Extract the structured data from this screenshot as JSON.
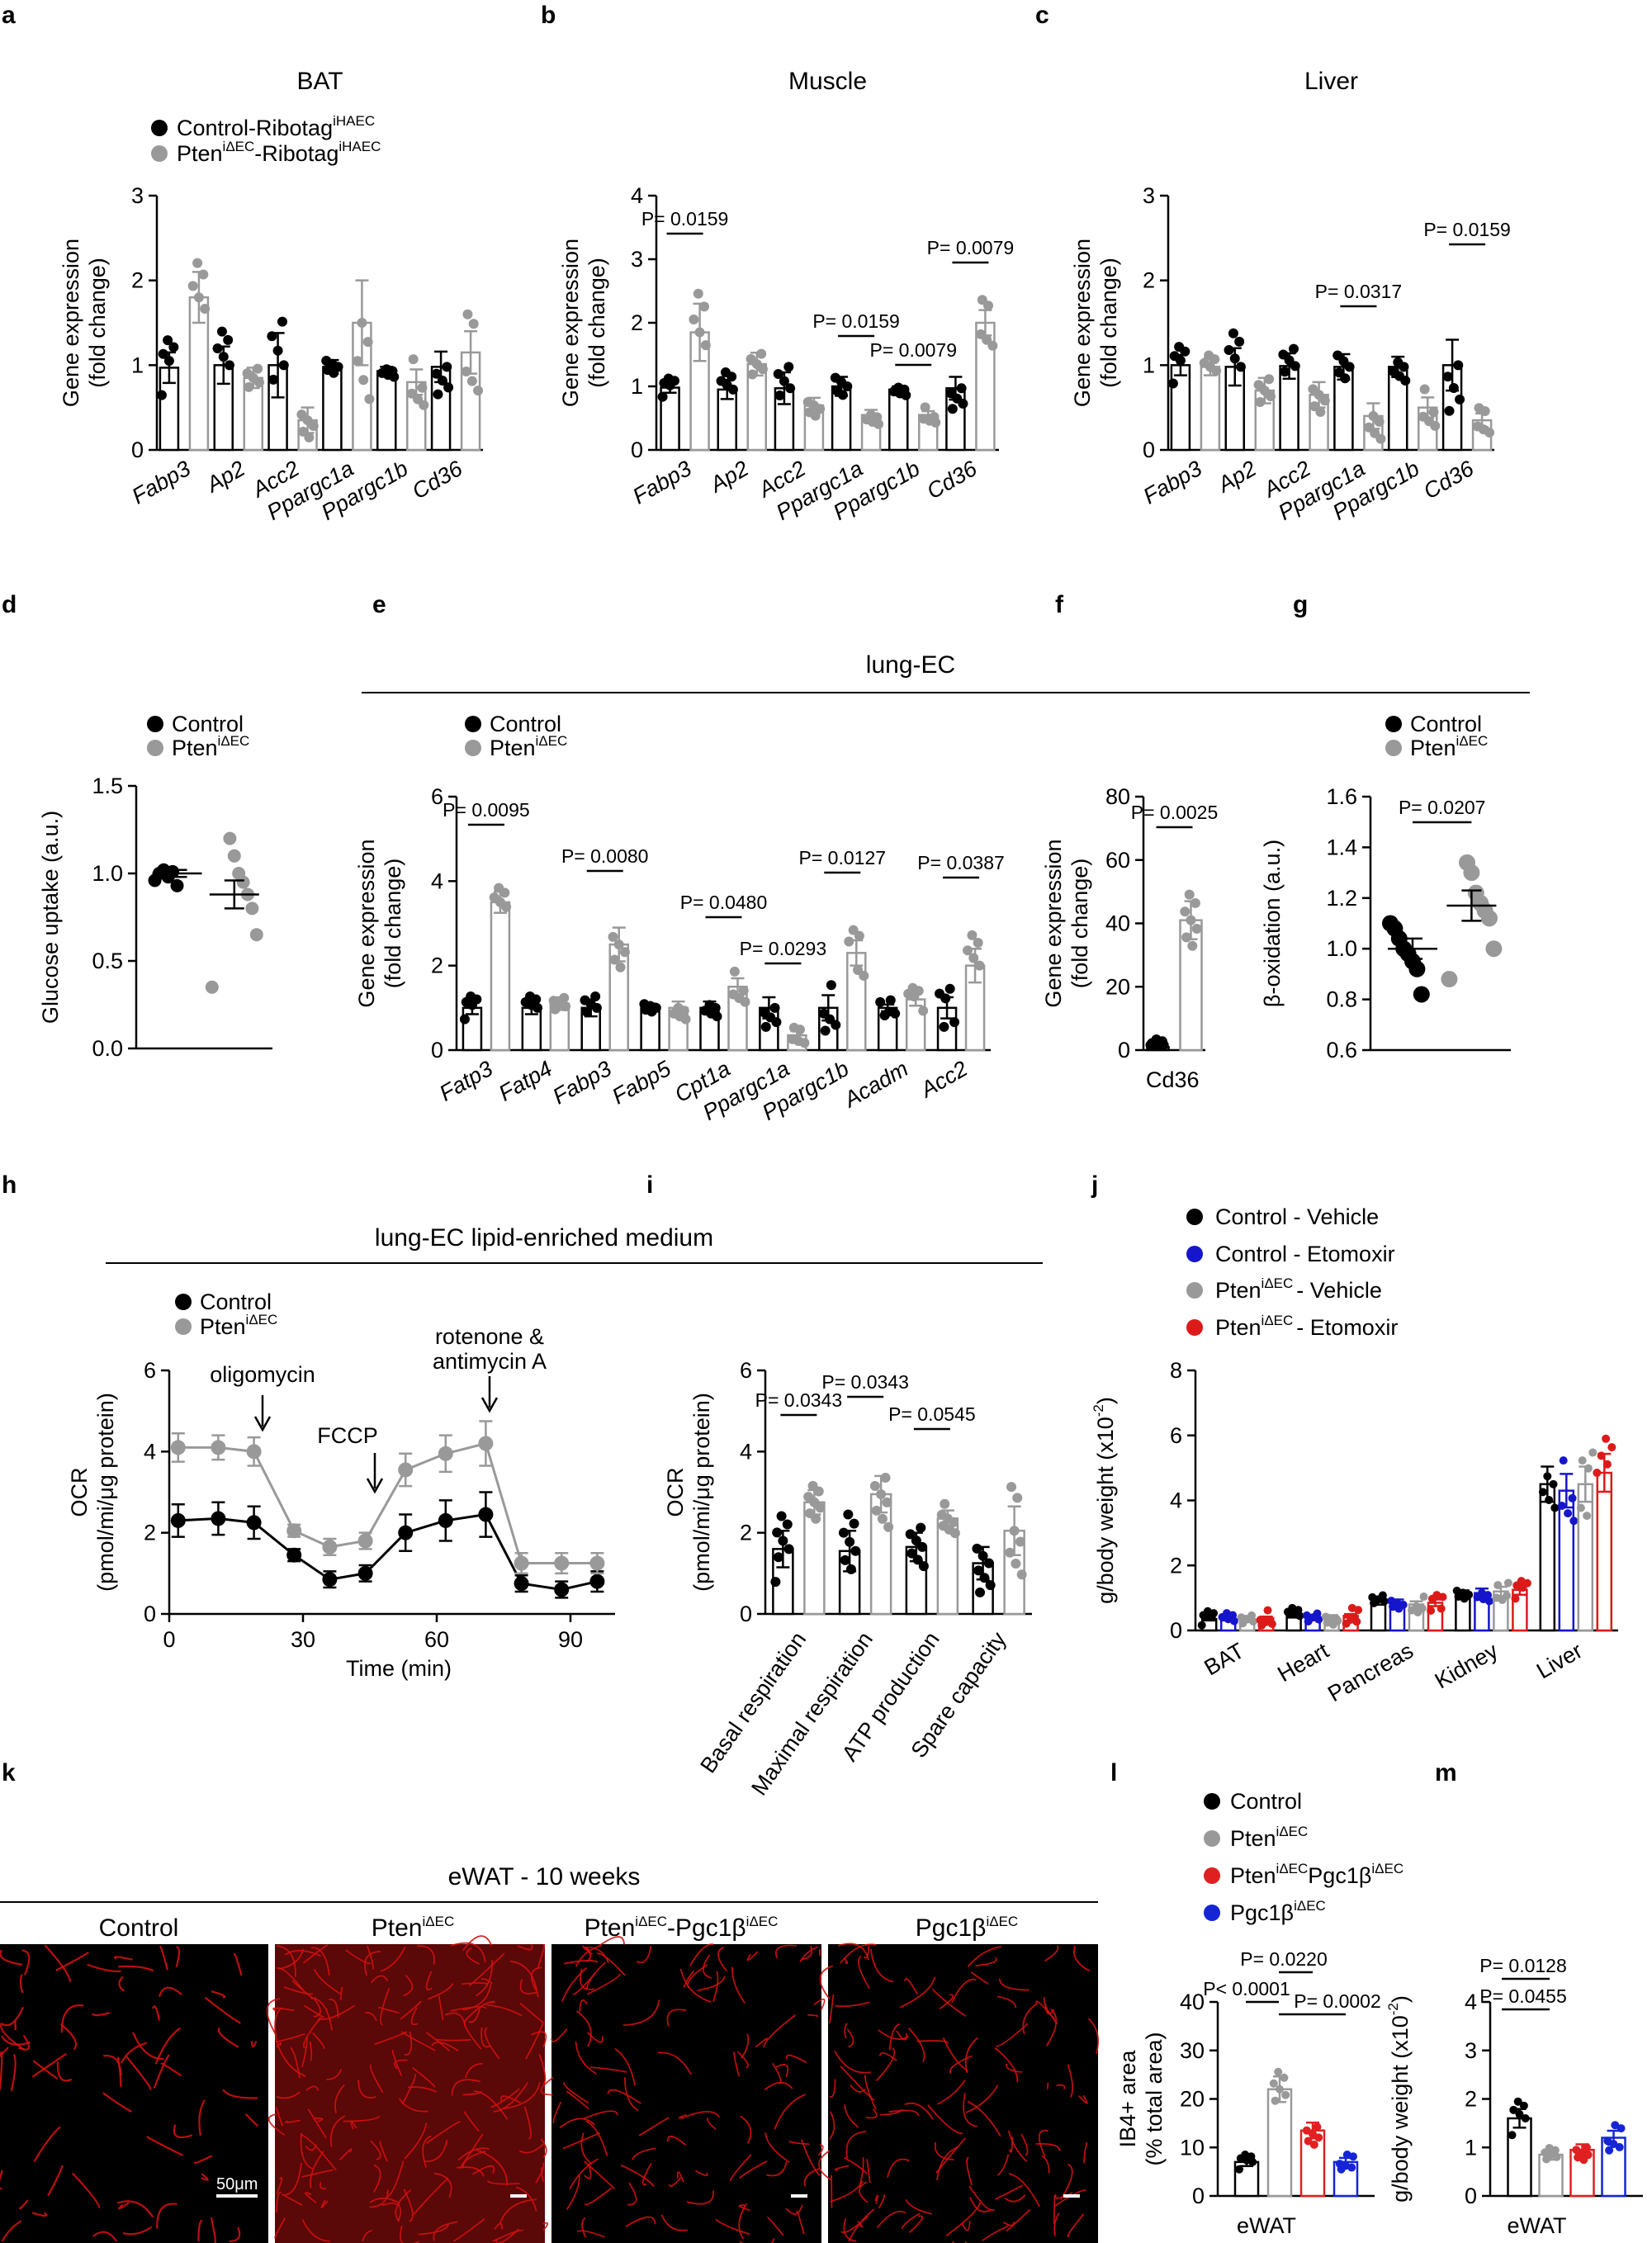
{
  "panel_letters": {
    "a": "a",
    "b": "b",
    "c": "c",
    "d": "d",
    "e": "e",
    "f": "f",
    "g": "g",
    "h": "h",
    "i": "i",
    "j": "j",
    "k": "k",
    "l": "l",
    "m": "m"
  },
  "colors": {
    "control": "#000000",
    "pten": "#999999",
    "etomoxir_control": "#1515cc",
    "etomoxir_pten": "#dd1a1a",
    "pgc": "#e02020",
    "pgc_only": "#1525d6",
    "vessel": "#d01010"
  },
  "legends": {
    "ribotag": {
      "control": "Control-Ribotag",
      "control_sup": "iHAEC",
      "pten": "Pten",
      "pten_sup1": "iΔEC",
      "pten_rest": "-Ribotag",
      "pten_sup2": "iHAEC"
    },
    "basic": {
      "control": "Control",
      "pten": "Pten",
      "pten_sup": "iΔEC"
    },
    "j": {
      "l1": "Control - Vehicle",
      "l2": "Control - Etomoxir",
      "l3_main": "Pten",
      "l3_sup": "iΔEC",
      "l3_rest": "- Vehicle",
      "l4_main": "Pten",
      "l4_sup": "iΔEC",
      "l4_rest": "- Etomoxir"
    },
    "l": {
      "l1": "Control",
      "l2_main": "Pten",
      "l2_sup": "iΔEC",
      "l3_a": "Pten",
      "l3_b": "iΔEC",
      "l3_c": "Pgc1β",
      "l3_d": "iΔEC",
      "l4_a": "Pgc1β",
      "l4_b": "iΔEC"
    }
  },
  "section_titles": {
    "e": "lung-EC",
    "h": "lung-EC lipid-enriched medium",
    "k": "eWAT - 10 weeks"
  },
  "h_annotations": {
    "oligomycin": "oligomycin",
    "fccp": "FCCP",
    "rotenone": "rotenone &",
    "antimycin": "antimycin A"
  },
  "k_images": {
    "c1": "Control",
    "c2_main": "Pten",
    "c2_sup": "iΔEC",
    "c3_a": "Pten",
    "c3_b": "iΔEC",
    "c3_c": "-Pgc1β",
    "c3_d": "iΔEC",
    "c4_a": "Pgc1β",
    "c4_b": "iΔEC",
    "scale": "50μm"
  },
  "chart_data": [
    {
      "id": "a",
      "type": "bar",
      "title": "BAT",
      "ylabel": "Gene expression",
      "ylabel2": "(fold change)",
      "ylim": [
        0,
        3
      ],
      "yticks": [
        "0",
        "1",
        "2",
        "3"
      ],
      "categories": [
        "Fabp3",
        "Ap2",
        "Acc2",
        "Ppargc1a",
        "Ppargc1b",
        "Cd36"
      ],
      "series": [
        {
          "name": "Control-Ribotag iHAEC",
          "values": [
            0.97,
            1.0,
            1.0,
            0.98,
            0.93,
            0.98
          ],
          "sem": [
            0.18,
            0.22,
            0.38,
            0.08,
            0.05,
            0.18
          ]
        },
        {
          "name": "Pten iΔEC-Ribotag iHAEC",
          "values": [
            1.8,
            0.85,
            0.35,
            1.5,
            0.8,
            1.15
          ],
          "sem": [
            0.3,
            0.12,
            0.15,
            0.5,
            0.15,
            0.25
          ]
        }
      ],
      "pvalues": []
    },
    {
      "id": "b",
      "type": "bar",
      "title": "Muscle",
      "ylabel": "Gene expression",
      "ylabel2": "(fold change)",
      "ylim": [
        0,
        4
      ],
      "yticks": [
        "0",
        "1",
        "2",
        "3",
        "4"
      ],
      "categories": [
        "Fabp3",
        "Ap2",
        "Acc2",
        "Ppargc1a",
        "Ppargc1b",
        "Cd36"
      ],
      "series": [
        {
          "name": "Control",
          "values": [
            0.98,
            0.95,
            0.97,
            1.0,
            0.95,
            0.97
          ],
          "sem": [
            0.08,
            0.15,
            0.25,
            0.15,
            0.05,
            0.18
          ]
        },
        {
          "name": "Pten",
          "values": [
            1.85,
            1.35,
            0.7,
            0.55,
            0.55,
            2.0
          ],
          "sem": [
            0.45,
            0.18,
            0.12,
            0.08,
            0.06,
            0.2
          ]
        }
      ],
      "pvalues": [
        {
          "text": "P= 0.0159",
          "cat": 0
        },
        {
          "text": "P= 0.0159",
          "cat": 3
        },
        {
          "text": "P= 0.0079",
          "cat": 4
        },
        {
          "text": "P= 0.0079",
          "cat": 5
        }
      ]
    },
    {
      "id": "c",
      "type": "bar",
      "title": "Liver",
      "ylabel": "Gene expression",
      "ylabel2": "(fold change)",
      "ylim": [
        0,
        3
      ],
      "yticks": [
        "0",
        "1",
        "2",
        "3"
      ],
      "categories": [
        "Fabp3",
        "Ap2",
        "Acc2",
        "Ppargc1a",
        "Ppargc1b",
        "Cd36"
      ],
      "series": [
        {
          "name": "Control",
          "values": [
            1.0,
            0.98,
            0.99,
            0.98,
            0.98,
            1.0
          ],
          "sem": [
            0.12,
            0.22,
            0.15,
            0.15,
            0.12,
            0.3
          ]
        },
        {
          "name": "Pten",
          "values": [
            0.98,
            0.7,
            0.65,
            0.4,
            0.5,
            0.35
          ],
          "sem": [
            0.1,
            0.15,
            0.15,
            0.15,
            0.12,
            0.08
          ]
        }
      ],
      "pvalues": [
        {
          "text": "P= 0.0317",
          "cat": 3
        },
        {
          "text": "P= 0.0159",
          "cat": 5
        }
      ]
    },
    {
      "id": "d",
      "type": "scatter",
      "ylabel": "Glucose uptake (a.u.)",
      "ylim": [
        0,
        1.5
      ],
      "yticks": [
        "0.0",
        "0.5",
        "1.0",
        "1.5"
      ],
      "groups": [
        {
          "name": "Control",
          "mean": 1.0,
          "sem": 0.02,
          "points": [
            0.96,
            1.0,
            1.02,
            0.98,
            1.01,
            0.93
          ]
        },
        {
          "name": "Pten iΔEC",
          "mean": 0.88,
          "sem": 0.08,
          "points": [
            1.2,
            1.1,
            1.0,
            0.95,
            0.88,
            0.8,
            0.65,
            0.35
          ]
        }
      ]
    },
    {
      "id": "e",
      "type": "bar",
      "ylabel": "Gene expression",
      "ylabel2": "(fold change)",
      "ylim": [
        0,
        6
      ],
      "yticks": [
        "0",
        "2",
        "4",
        "6"
      ],
      "categories": [
        "Fatp3",
        "Fatp4",
        "Fabp3",
        "Fabp5",
        "Cpt1a",
        "Ppargc1a",
        "Ppargc1b",
        "Acadm",
        "Acc2"
      ],
      "series": [
        {
          "name": "Control",
          "values": [
            1.0,
            1.0,
            1.0,
            1.0,
            1.0,
            1.0,
            1.0,
            1.0,
            1.0
          ],
          "sem": [
            0.15,
            0.15,
            0.2,
            0.1,
            0.15,
            0.25,
            0.3,
            0.08,
            0.25
          ]
        },
        {
          "name": "Pten",
          "values": [
            3.5,
            1.1,
            2.5,
            1.0,
            1.5,
            0.35,
            2.3,
            1.2,
            2.0
          ],
          "sem": [
            0.25,
            0.15,
            0.4,
            0.15,
            0.2,
            0.1,
            0.3,
            0.15,
            0.4
          ]
        }
      ],
      "pvalues": [
        {
          "text": "P= 0.0095",
          "cat": 0
        },
        {
          "text": "P= 0.0080",
          "cat": 2
        },
        {
          "text": "P= 0.0480",
          "cat": 4
        },
        {
          "text": "P= 0.0293",
          "cat": 5
        },
        {
          "text": "P= 0.0127",
          "cat": 6
        },
        {
          "text": "P= 0.0387",
          "cat": 8
        }
      ]
    },
    {
      "id": "f",
      "type": "bar",
      "ylabel": "Gene expression",
      "ylabel2": "(fold change)",
      "ylim": [
        0,
        80
      ],
      "yticks": [
        "0",
        "20",
        "40",
        "60",
        "80"
      ],
      "categories": [
        "Cd36"
      ],
      "series": [
        {
          "name": "Control",
          "values": [
            1.0
          ],
          "sem": [
            0.3
          ]
        },
        {
          "name": "Pten",
          "values": [
            41
          ],
          "sem": [
            6
          ]
        }
      ],
      "pvalues": [
        {
          "text": "P= 0.0025",
          "cat": 0
        }
      ]
    },
    {
      "id": "g",
      "type": "scatter",
      "ylabel": "β-oxidation (a.u.)",
      "ylim": [
        0.6,
        1.6
      ],
      "yticks": [
        "0.6",
        "0.8",
        "1.0",
        "1.2",
        "1.4",
        "1.6"
      ],
      "groups": [
        {
          "name": "Control",
          "mean": 1.0,
          "sem": 0.04,
          "points": [
            1.1,
            1.08,
            1.04,
            1.0,
            0.98,
            0.95,
            0.92,
            0.82
          ]
        },
        {
          "name": "Pten iΔEC",
          "mean": 1.17,
          "sem": 0.06,
          "points": [
            1.34,
            1.3,
            1.22,
            1.18,
            1.15,
            1.12,
            1.0,
            0.88
          ]
        }
      ],
      "pvalue": "P= 0.0207"
    },
    {
      "id": "h",
      "type": "line",
      "xlabel": "Time (min)",
      "ylabel": "OCR",
      "ylabel2": "(pmol/mi/μg protein)",
      "xlim": [
        0,
        100
      ],
      "ylim": [
        0,
        6
      ],
      "xticks": [
        "0",
        "30",
        "60",
        "90"
      ],
      "yticks": [
        "0",
        "2",
        "4",
        "6"
      ],
      "x": [
        2,
        11,
        19,
        28,
        36,
        44,
        53,
        62,
        71,
        79,
        88,
        96
      ],
      "series": [
        {
          "name": "Control",
          "values": [
            2.3,
            2.35,
            2.25,
            1.45,
            0.85,
            1.0,
            2.0,
            2.3,
            2.45,
            0.75,
            0.6,
            0.8
          ],
          "sem": [
            0.4,
            0.4,
            0.4,
            0.15,
            0.2,
            0.2,
            0.45,
            0.5,
            0.55,
            0.2,
            0.2,
            0.25
          ]
        },
        {
          "name": "Pten iΔEC",
          "values": [
            4.1,
            4.1,
            4.0,
            2.05,
            1.65,
            1.8,
            3.55,
            3.95,
            4.2,
            1.25,
            1.25,
            1.25
          ],
          "sem": [
            0.35,
            0.3,
            0.35,
            0.15,
            0.2,
            0.2,
            0.4,
            0.45,
            0.55,
            0.25,
            0.25,
            0.25
          ]
        }
      ]
    },
    {
      "id": "i",
      "type": "bar",
      "ylabel": "OCR",
      "ylabel2": "(pmol/mi/μg protein)",
      "ylim": [
        0,
        6
      ],
      "yticks": [
        "0",
        "2",
        "4",
        "6"
      ],
      "categories": [
        "Basal respiration",
        "Maximal respiration",
        "ATP production",
        "Spare capacity"
      ],
      "series": [
        {
          "name": "Control",
          "values": [
            1.6,
            1.55,
            1.65,
            1.25
          ],
          "sem": [
            0.45,
            0.5,
            0.35,
            0.4
          ]
        },
        {
          "name": "Pten",
          "values": [
            2.75,
            2.95,
            2.35,
            2.05
          ],
          "sem": [
            0.3,
            0.45,
            0.2,
            0.6
          ]
        }
      ],
      "pvalues": [
        {
          "text": "P= 0.0343",
          "cat": 0
        },
        {
          "text": "P= 0.0343",
          "cat": 1
        },
        {
          "text": "P= 0.0545",
          "cat": 2
        }
      ]
    },
    {
      "id": "j",
      "type": "bar",
      "ylabel": "g/body weight (x10",
      "ylim": [
        0,
        8
      ],
      "yticks": [
        "0",
        "2",
        "4",
        "6",
        "8"
      ],
      "categories": [
        "BAT",
        "Heart",
        "Pancreas",
        "Kidney",
        "Liver"
      ],
      "series": [
        {
          "name": "Control - Vehicle",
          "values": [
            0.35,
            0.45,
            0.9,
            1.1,
            4.5
          ]
        },
        {
          "name": "Control - Etomoxir",
          "values": [
            0.35,
            0.4,
            0.85,
            1.15,
            4.3
          ]
        },
        {
          "name": "Pten iΔEC - Vehicle",
          "values": [
            0.4,
            0.42,
            0.8,
            1.2,
            4.5
          ]
        },
        {
          "name": "Pten iΔEC - Etomoxir",
          "values": [
            0.38,
            0.45,
            0.85,
            1.25,
            4.85
          ]
        }
      ]
    },
    {
      "id": "l",
      "type": "bar",
      "ylabel": "IB4+ area",
      "ylabel2": "(% total area)",
      "ylim": [
        0,
        40
      ],
      "yticks": [
        "0",
        "10",
        "20",
        "30",
        "40"
      ],
      "categories": [
        "eWAT"
      ],
      "series": [
        {
          "name": "Control",
          "values": [
            7
          ]
        },
        {
          "name": "Pten iΔEC",
          "values": [
            22
          ]
        },
        {
          "name": "Pten iΔEC Pgc1β iΔEC",
          "values": [
            13.5
          ]
        },
        {
          "name": "Pgc1β iΔEC",
          "values": [
            7
          ]
        }
      ],
      "pvalues": [
        {
          "text": "P= 0.0220"
        },
        {
          "text": "P< 0.0001"
        },
        {
          "text": "P= 0.0002"
        }
      ]
    },
    {
      "id": "m",
      "type": "bar",
      "ylabel": "g/body weight (x10",
      "ylim": [
        0,
        4
      ],
      "yticks": [
        "0",
        "1",
        "2",
        "3",
        "4"
      ],
      "categories": [
        "eWAT"
      ],
      "series": [
        {
          "name": "Control",
          "values": [
            1.6
          ]
        },
        {
          "name": "Pten iΔEC",
          "values": [
            0.85
          ]
        },
        {
          "name": "Pten iΔEC Pgc1β iΔEC",
          "values": [
            0.95
          ]
        },
        {
          "name": "Pgc1β iΔEC",
          "values": [
            1.2
          ]
        }
      ],
      "pvalues": [
        {
          "text": "P= 0.0128"
        },
        {
          "text": "P= 0.0455"
        }
      ]
    }
  ]
}
